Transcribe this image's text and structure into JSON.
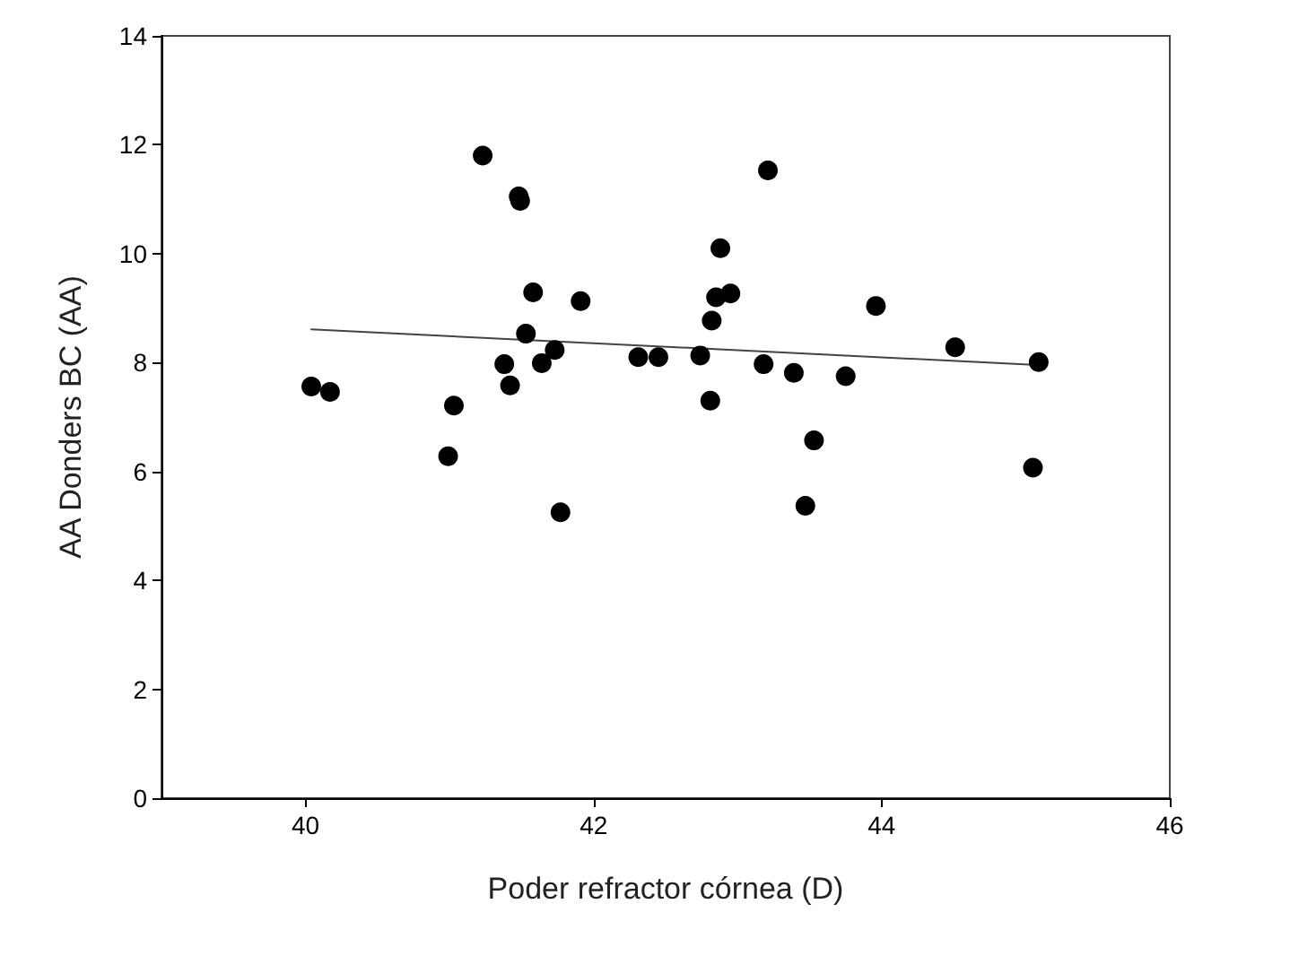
{
  "chart_data": {
    "type": "scatter",
    "xlabel": "Poder refractor córnea (D)",
    "ylabel": "AA Donders BC (AA)",
    "xlim": [
      39,
      46
    ],
    "xticks": [
      40,
      42,
      44,
      46
    ],
    "ylim": [
      0,
      14
    ],
    "yticks": [
      0,
      2,
      4,
      6,
      8,
      10,
      12,
      14
    ],
    "marker": "circle",
    "series": [
      {
        "color": "#000000",
        "x": [
          40.04,
          40.17,
          40.99,
          41.03,
          41.23,
          41.48,
          41.49,
          41.58,
          41.91,
          41.53,
          41.38,
          41.42,
          41.64,
          41.73,
          42.31,
          42.45,
          41.77,
          42.74,
          43.21,
          42.88,
          42.85,
          42.95,
          42.82,
          42.81,
          43.18,
          43.39,
          43.75,
          43.96,
          44.51,
          45.09,
          43.53,
          45.05,
          43.47
        ],
        "values": [
          7.56,
          7.46,
          6.28,
          7.21,
          11.8,
          11.05,
          10.97,
          9.29,
          9.13,
          8.53,
          7.97,
          7.58,
          7.99,
          8.23,
          8.1,
          8.1,
          5.25,
          8.13,
          11.53,
          10.1,
          9.2,
          9.27,
          8.77,
          7.3,
          7.97,
          7.81,
          7.75,
          9.04,
          8.28,
          8.01,
          6.57,
          6.07,
          5.37
        ]
      },
      {
        "type": "line",
        "color": "#444444",
        "line_style": "solid",
        "marker": "none",
        "x": [
          40.04,
          45.05
        ],
        "values": [
          8.61,
          7.96
        ]
      }
    ]
  }
}
